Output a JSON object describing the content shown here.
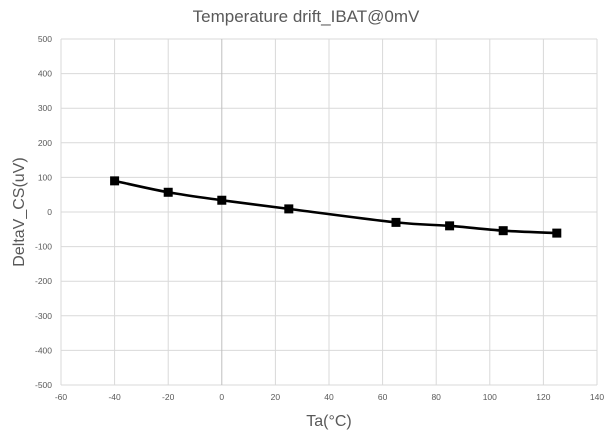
{
  "chart_data": {
    "type": "scatter",
    "title": "Temperature drift_IBAT@0mV",
    "xlabel": "Ta(°C)",
    "ylabel": "DeltaV_CS(uV)",
    "xlim": [
      -60,
      140
    ],
    "ylim": [
      -500,
      500
    ],
    "x_ticks": [
      -60,
      -40,
      -20,
      0,
      20,
      40,
      60,
      80,
      100,
      120,
      140
    ],
    "y_ticks": [
      500,
      400,
      300,
      200,
      100,
      0,
      -100,
      -200,
      -300,
      -400,
      -500
    ],
    "grid": true,
    "legend": "none",
    "series": [
      {
        "x": [
          -40,
          -20,
          0,
          25,
          65,
          85,
          105,
          125
        ],
        "y": [
          90,
          57,
          34,
          9,
          -30,
          -40,
          -54,
          -61
        ],
        "color": "#000000",
        "marker": "square",
        "line": "smooth"
      }
    ]
  }
}
